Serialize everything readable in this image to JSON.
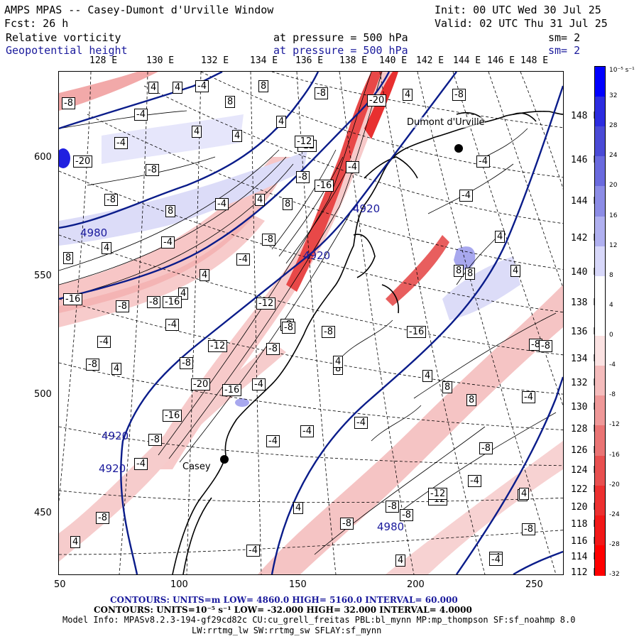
{
  "header": {
    "title": "AMPS MPAS -- Casey-Dumont d'Urville Window",
    "init": "Init: 00 UTC Wed 30 Jul 25",
    "fcst": "Fcst:   26 h",
    "valid": "Valid: 02 UTC Thu 31 Jul 25",
    "field1_name": "Relative vorticity",
    "field1_level": "at pressure =  500 hPa",
    "field1_sm": "sm= 2",
    "field2_name": "Geopotential height",
    "field2_level": "at pressure =  500 hPa",
    "field2_sm": "sm= 2"
  },
  "axes": {
    "top_lon": [
      "128 E",
      "130 E",
      "132 E",
      "134 E",
      "136 E",
      "138 E",
      "140 E",
      "142 E",
      "144 E",
      "146 E",
      "148 E"
    ],
    "right_lat": [
      "148 E",
      "146 E",
      "144 E",
      "142 E",
      "140 E",
      "138 E",
      "136 E",
      "134 E",
      "132 E",
      "130 E",
      "128 E",
      "126 E",
      "124 E",
      "122 E",
      "120 E",
      "118 E",
      "116 E",
      "114 E",
      "112 E"
    ],
    "x_ticks": [
      "50",
      "100",
      "150",
      "200",
      "250"
    ],
    "y_ticks": [
      "600",
      "550",
      "500",
      "450"
    ]
  },
  "colorbar": {
    "unit": "10⁻⁵ s⁻¹",
    "labels": [
      "32",
      "28",
      "24",
      "20",
      "16",
      "12",
      "8",
      "4",
      "0",
      "-4",
      "-8",
      "-12",
      "-16",
      "-20",
      "-24",
      "-28",
      "-32"
    ],
    "colors": [
      "#0000ff",
      "#2c2ce0",
      "#4a4ad6",
      "#6a6ade",
      "#8c8ce6",
      "#b0b0f0",
      "#d8d8fa",
      "#ffffff",
      "#ffffff",
      "#fbe2e2",
      "#f5bcbc",
      "#ef9898",
      "#ea7474",
      "#e85050",
      "#ec3030",
      "#f21818",
      "#ff0000"
    ]
  },
  "map": {
    "stations": [
      {
        "name": "Casey"
      },
      {
        "name": "Dumont d'Urville"
      }
    ],
    "height_labels": [
      "4920",
      "4920",
      "4920",
      "4920",
      "4980",
      "4980"
    ],
    "vort_labels": [
      "-8",
      "4",
      "4",
      "-4",
      "8",
      "8",
      "-4",
      "4",
      "-4",
      "4",
      "-12",
      "-20",
      "-8",
      "-4",
      "-8",
      "-16",
      "-8",
      "8",
      "-4",
      "4",
      "8",
      "-8",
      "4",
      "-4",
      "8",
      "4",
      "-4",
      "4",
      "-16",
      "-12",
      "-8",
      "-8",
      "4",
      "-8",
      "-4",
      "-4",
      "4",
      "-8",
      "-20",
      "-16",
      "-12",
      "-8",
      "-8",
      "-4",
      "-8",
      "-12",
      "4",
      "-4",
      "-8",
      "-4",
      "-4",
      "-8",
      "8",
      "-8",
      "-4",
      "4",
      "8",
      "4",
      "-16",
      "-8",
      "-8",
      "-4",
      "8",
      "4",
      "-8",
      "4",
      "-4",
      "4",
      "-8",
      "-4",
      "-12",
      "-16",
      "-8",
      "4",
      "-20",
      "-8",
      "-16",
      "-4",
      "4",
      "4",
      "-8",
      "-4",
      "8",
      "-8",
      "-12",
      "-8",
      "8",
      "-4",
      "4",
      "-4"
    ]
  },
  "footer": {
    "line1": "CONTOURS:  UNITS=m  LOW=  4860.0          HIGH=  5160.0          INTERVAL=   60.000",
    "line2": "CONTOURS:  UNITS=10⁻⁵ s⁻¹   LOW=  -32.000          HIGH=  32.000          INTERVAL=   4.0000",
    "line3": "Model Info: MPASv8.2.3-194-gf29cd82c CU:cu_grell_freitas PBL:bl_mynn MP:mp_thompson SF:sf_noahmp 8.0",
    "line4": "LW:rrtmg_lw SW:rrtmg_sw SFLAY:sf_mynn"
  }
}
